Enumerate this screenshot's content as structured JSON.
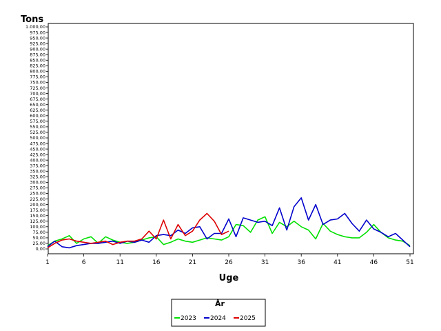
{
  "chart_data": {
    "type": "line",
    "ylabel": "Tons",
    "xlabel": "Uge",
    "ylim": [
      0,
      1000
    ],
    "ytick_step": 25,
    "xlim": [
      1,
      51
    ],
    "xticks": [
      1,
      6,
      11,
      16,
      21,
      26,
      31,
      36,
      41,
      46,
      51
    ],
    "grid": false,
    "legend": {
      "title": "År",
      "placement": "bottom-center"
    },
    "series": [
      {
        "name": "2023",
        "color": "#00e000",
        "x": [
          1,
          2,
          3,
          4,
          5,
          6,
          7,
          8,
          9,
          10,
          11,
          12,
          13,
          14,
          15,
          16,
          17,
          18,
          19,
          20,
          21,
          22,
          23,
          24,
          25,
          26,
          27,
          28,
          29,
          30,
          31,
          32,
          33,
          34,
          35,
          36,
          37,
          38,
          39,
          40,
          41,
          42,
          43,
          44,
          45,
          46,
          47,
          48,
          49,
          50,
          51
        ],
        "y": [
          15,
          35,
          45,
          60,
          25,
          45,
          55,
          25,
          55,
          40,
          30,
          25,
          30,
          40,
          50,
          55,
          20,
          30,
          45,
          35,
          30,
          40,
          50,
          45,
          40,
          55,
          110,
          105,
          75,
          130,
          145,
          70,
          120,
          100,
          125,
          100,
          85,
          45,
          115,
          80,
          65,
          55,
          50,
          50,
          75,
          110,
          75,
          50,
          40,
          35,
          15
        ]
      },
      {
        "name": "2024",
        "color": "#0000cc",
        "x": [
          1,
          2,
          3,
          4,
          5,
          6,
          7,
          8,
          9,
          10,
          11,
          12,
          13,
          14,
          15,
          16,
          17,
          18,
          19,
          20,
          21,
          22,
          23,
          24,
          25,
          26,
          27,
          28,
          29,
          30,
          31,
          32,
          33,
          34,
          35,
          36,
          37,
          38,
          39,
          40,
          41,
          42,
          43,
          44,
          45,
          46,
          47,
          48,
          49,
          50,
          51
        ],
        "y": [
          10,
          35,
          10,
          5,
          15,
          20,
          25,
          25,
          30,
          35,
          25,
          35,
          30,
          40,
          30,
          60,
          65,
          60,
          85,
          70,
          95,
          100,
          45,
          70,
          70,
          135,
          55,
          140,
          130,
          120,
          125,
          105,
          185,
          85,
          190,
          230,
          130,
          200,
          110,
          130,
          135,
          160,
          115,
          80,
          130,
          90,
          75,
          55,
          70,
          40,
          10
        ]
      },
      {
        "name": "2025",
        "color": "#dd0000",
        "x": [
          1,
          2,
          3,
          4,
          5,
          6,
          7,
          8,
          9,
          10,
          11,
          12,
          13,
          14,
          15,
          16,
          17,
          18,
          19,
          20,
          21,
          22,
          23,
          24,
          25,
          26
        ],
        "y": [
          5,
          25,
          40,
          45,
          35,
          30,
          25,
          30,
          35,
          20,
          30,
          35,
          35,
          45,
          80,
          45,
          130,
          45,
          110,
          60,
          80,
          130,
          160,
          125,
          65,
          80
        ]
      }
    ]
  }
}
